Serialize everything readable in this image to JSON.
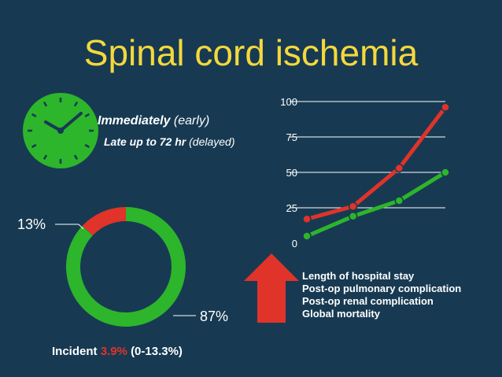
{
  "title": "Spinal cord ischemia",
  "clock": {
    "icon": "clock-icon",
    "color": "#2db52b"
  },
  "onset": {
    "line1_bold": "Immediately",
    "line1_rest": " (early)",
    "line2_bold": "Late up to 72 hr",
    "line2_rest": " (delayed)"
  },
  "donut": {
    "percent_small": "13%",
    "percent_large": "87%",
    "small_fraction": 0.13,
    "large_fraction": 0.87,
    "small_color": "#e0332a",
    "large_color": "#2db52b"
  },
  "incident": {
    "label": "Incident",
    "value": "3.9%",
    "range": "(0-13.3%)"
  },
  "arrow": {
    "icon": "up-arrow-icon",
    "color": "#e0332a"
  },
  "bullets": [
    "Length of hospital stay",
    "Post-op pulmonary complication",
    "Post-op renal complication",
    "Global mortality"
  ],
  "chart_data": {
    "type": "line",
    "x": [
      1,
      2,
      3,
      4
    ],
    "ylim": [
      0,
      100
    ],
    "yticks": [
      "100",
      "75",
      "50",
      "25",
      "0"
    ],
    "grid": true,
    "series": [
      {
        "color": "#e0332a",
        "values": [
          17,
          26,
          53,
          96
        ]
      },
      {
        "color": "#2db52b",
        "values": [
          5,
          19,
          30,
          50
        ]
      }
    ]
  }
}
